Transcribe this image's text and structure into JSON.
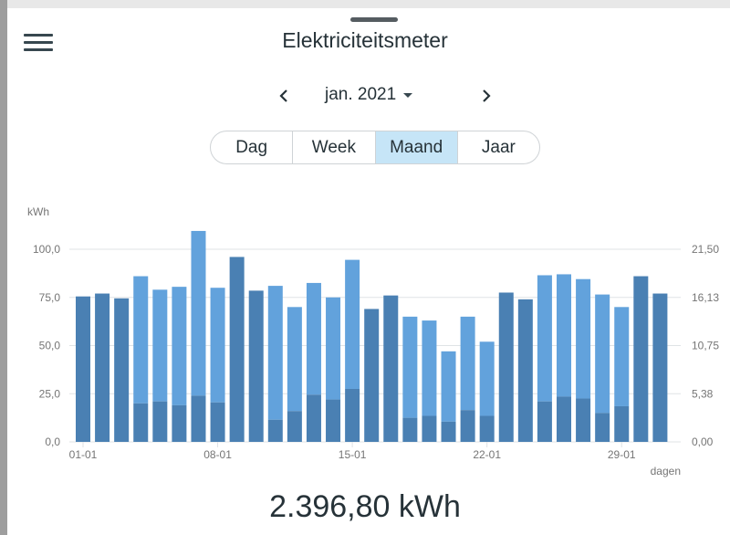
{
  "app": {
    "title": "Elektriciteitsmeter"
  },
  "period": {
    "label": "jan. 2021"
  },
  "segments": [
    "Dag",
    "Week",
    "Maand",
    "Jaar"
  ],
  "segments_active_index": 2,
  "colors": {
    "dark_bar": "#4a80b3",
    "light_bar": "#62a2dc",
    "grid": "#dfe3e6",
    "axis_text": "#757575",
    "active_segment": "#c6e5f7"
  },
  "icons": {
    "menu": "menu-icon",
    "prev": "chevron-left-icon",
    "next": "chevron-right-icon",
    "dropdown": "caret-down-icon"
  },
  "chart_data": {
    "type": "bar",
    "ylabel": "kWh",
    "xlabel": "dagen",
    "ylim": [
      0,
      100
    ],
    "y_ticks": [
      "0,0",
      "25,0",
      "50,0",
      "75,0",
      "100,0"
    ],
    "y2_ticks": [
      "0,00",
      "5,38",
      "10,75",
      "16,13",
      "21,50"
    ],
    "x_ticks": [
      "01-01",
      "08-01",
      "15-01",
      "22-01",
      "29-01"
    ],
    "x_tick_days": [
      1,
      8,
      15,
      22,
      29
    ],
    "grid": true,
    "days": [
      1,
      2,
      3,
      4,
      5,
      6,
      7,
      8,
      9,
      10,
      11,
      12,
      13,
      14,
      15,
      16,
      17,
      18,
      19,
      20,
      21,
      22,
      23,
      24,
      25,
      26,
      27,
      28,
      29,
      30,
      31
    ],
    "series": [
      {
        "values": [
          75.5,
          77,
          74.5,
          86,
          79,
          80.5,
          109.5,
          80,
          96,
          78.5,
          81,
          70,
          82.5,
          75,
          94.5,
          69,
          76,
          65,
          63,
          47,
          65,
          52,
          77.5,
          74,
          86.5,
          87,
          84.5,
          76.5,
          70,
          86,
          77
        ]
      },
      {
        "values": [
          75.5,
          77,
          74.5,
          20,
          21,
          19,
          24,
          20.5,
          96,
          78.5,
          11.5,
          16,
          24.5,
          22,
          27.5,
          69,
          76,
          12.5,
          13.5,
          10.5,
          16.5,
          13.5,
          77.5,
          74,
          21,
          23.5,
          22.5,
          15,
          18.5,
          86,
          77
        ]
      }
    ]
  },
  "total": {
    "text": "2.396,80 kWh"
  }
}
